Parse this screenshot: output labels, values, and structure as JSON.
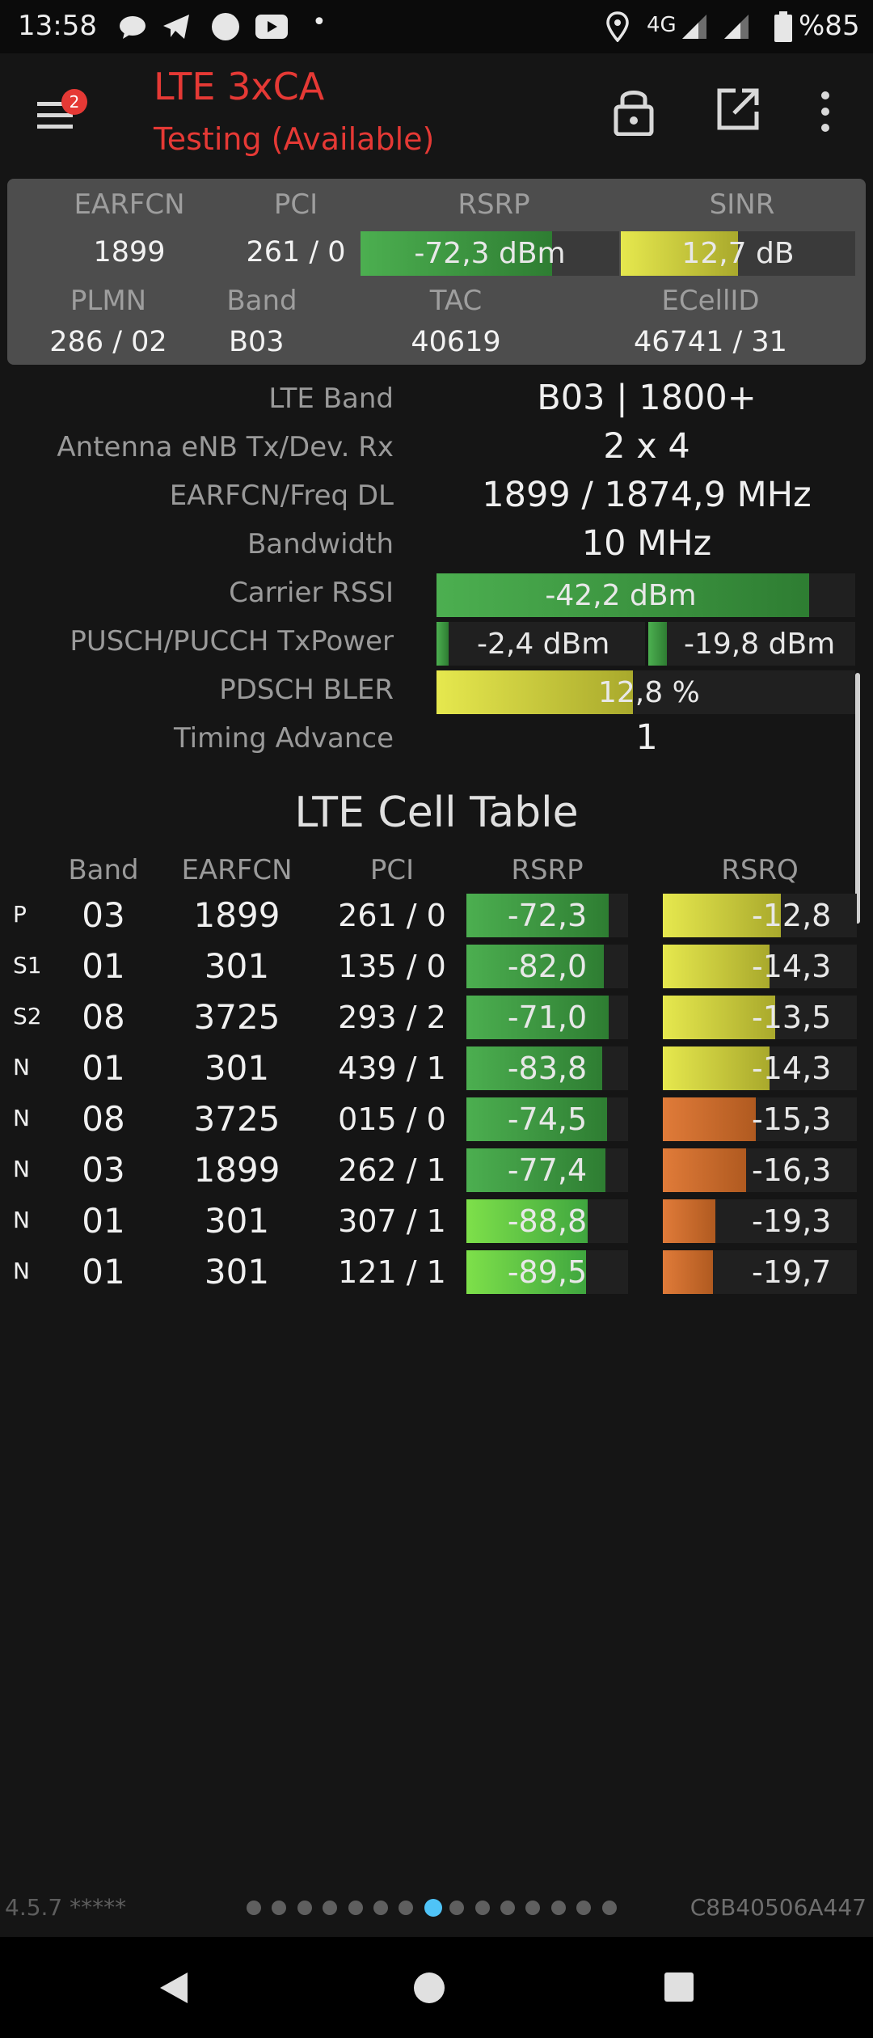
{
  "status": {
    "time": "13:58",
    "network": "4G",
    "battery": "%85",
    "dot": "•"
  },
  "app": {
    "title": "LTE 3xCA",
    "subtitle": "Testing (Available)",
    "badge": "2"
  },
  "summary": {
    "labels": [
      "EARFCN",
      "PCI",
      "RSRP",
      "SINR",
      "PLMN",
      "Band",
      "TAC",
      "ECellID"
    ],
    "earfcn": "1899",
    "pci": "261 / 0",
    "rsrp": "-72,3 dBm",
    "rsrp_level": 0.74,
    "sinr": "12,7 dB",
    "sinr_level": 0.5,
    "plmn": "286 / 02",
    "band": "B03",
    "tac": "40619",
    "ecellid": "46741 / 31"
  },
  "details": [
    {
      "label": "LTE Band",
      "value": "B03 | 1800+"
    },
    {
      "label": "Antenna eNB Tx/Dev. Rx",
      "value": "2 x 4"
    },
    {
      "label": "EARFCN/Freq DL",
      "value": "1899 / 1874,9 MHz"
    },
    {
      "label": "Bandwidth",
      "value": "10 MHz"
    },
    {
      "label": "Carrier RSSI",
      "value": "-42,2 dBm",
      "level": 0.89
    },
    {
      "label": "PUSCH/PUCCH TxPower",
      "value": "-2,4 dBm",
      "value2": "-19,8 dBm",
      "level": 0.06,
      "level2": 0.09
    },
    {
      "label": "PDSCH BLER",
      "value": "12,8 %",
      "level": 0.47
    },
    {
      "label": "Timing Advance",
      "value": "1"
    }
  ],
  "cell_table": {
    "title": "LTE Cell Table",
    "headers": [
      "Band",
      "EARFCN",
      "PCI",
      "RSRP",
      "RSRQ"
    ],
    "rows": [
      {
        "tag": "P",
        "band": "03",
        "earfcn": "1899",
        "pci": "261 / 0",
        "rsrp": "-72,3",
        "rsrp_level": 0.88,
        "rsrp_color": "green",
        "rsrq": "-12,8",
        "rsrq_level": 0.61,
        "rsrq_color": "yellow"
      },
      {
        "tag": "S1",
        "band": "01",
        "earfcn": "301",
        "pci": "135 / 0",
        "rsrp": "-82,0",
        "rsrp_level": 0.85,
        "rsrp_color": "green",
        "rsrq": "-14,3",
        "rsrq_level": 0.55,
        "rsrq_color": "yellow"
      },
      {
        "tag": "S2",
        "band": "08",
        "earfcn": "3725",
        "pci": "293 / 2",
        "rsrp": "-71,0",
        "rsrp_level": 0.88,
        "rsrp_color": "green",
        "rsrq": "-13,5",
        "rsrq_level": 0.58,
        "rsrq_color": "yellow"
      },
      {
        "tag": "N",
        "band": "01",
        "earfcn": "301",
        "pci": "439 / 1",
        "rsrp": "-83,8",
        "rsrp_level": 0.84,
        "rsrp_color": "green",
        "rsrq": "-14,3",
        "rsrq_level": 0.55,
        "rsrq_color": "yellow"
      },
      {
        "tag": "N",
        "band": "08",
        "earfcn": "3725",
        "pci": "015 / 0",
        "rsrp": "-74,5",
        "rsrp_level": 0.87,
        "rsrp_color": "green",
        "rsrq": "-15,3",
        "rsrq_level": 0.48,
        "rsrq_color": "orange"
      },
      {
        "tag": "N",
        "band": "03",
        "earfcn": "1899",
        "pci": "262 / 1",
        "rsrp": "-77,4",
        "rsrp_level": 0.86,
        "rsrp_color": "green",
        "rsrq": "-16,3",
        "rsrq_level": 0.43,
        "rsrq_color": "orange"
      },
      {
        "tag": "N",
        "band": "01",
        "earfcn": "301",
        "pci": "307 / 1",
        "rsrp": "-88,8",
        "rsrp_level": 0.75,
        "rsrp_color": "lightgreen",
        "rsrq": "-19,3",
        "rsrq_level": 0.27,
        "rsrq_color": "orange"
      },
      {
        "tag": "N",
        "band": "01",
        "earfcn": "301",
        "pci": "121 / 1",
        "rsrp": "-89,5",
        "rsrp_level": 0.74,
        "rsrp_color": "lightgreen",
        "rsrq": "-19,7",
        "rsrq_level": 0.26,
        "rsrq_color": "orange"
      }
    ]
  },
  "footer": {
    "version": "4.5.7 *****",
    "device_id": "C8B40506A447",
    "page_count": 15,
    "active_page": 8
  },
  "colors": {
    "title_red": "#e53935",
    "active_dot": "#4fc3f7"
  }
}
